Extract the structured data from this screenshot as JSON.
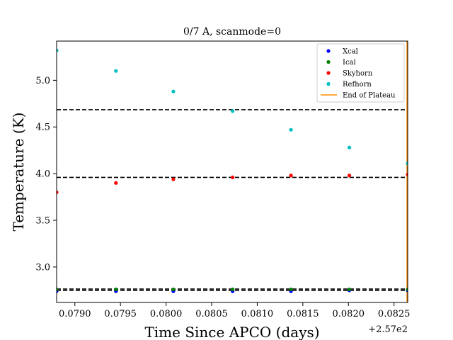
{
  "chart_data": {
    "type": "scatter",
    "title": "0/7 A, scanmode=0",
    "xlabel": "Time Since APCO (days)",
    "ylabel": "Temperature (K)",
    "x_offset_label": "+2.57e2",
    "xlim": [
      0.0788,
      0.08265
    ],
    "ylim": [
      2.62,
      5.42
    ],
    "xticks": [
      0.079,
      0.0795,
      0.08,
      0.0805,
      0.081,
      0.0815,
      0.082,
      0.0825
    ],
    "xtick_labels": [
      "0.0790",
      "0.0795",
      "0.0800",
      "0.0805",
      "0.0810",
      "0.0815",
      "0.0820",
      "0.0825"
    ],
    "yticks": [
      3.0,
      3.5,
      4.0,
      4.5,
      5.0
    ],
    "ytick_labels": [
      "3.0",
      "3.5",
      "4.0",
      "4.5",
      "5.0"
    ],
    "grid": false,
    "legend_position": "top-right",
    "series": [
      {
        "name": "Xcal",
        "color": "#0000ff",
        "x": [
          0.0788,
          0.07945,
          0.08008,
          0.08073,
          0.08137,
          0.08201,
          0.08265
        ],
        "y": [
          2.74,
          2.74,
          2.74,
          2.74,
          2.74,
          2.75,
          2.75
        ]
      },
      {
        "name": "Ical",
        "color": "#008000",
        "x": [
          0.0788,
          0.07945,
          0.08008,
          0.08073,
          0.08137,
          0.08201,
          0.08265
        ],
        "y": [
          2.76,
          2.76,
          2.76,
          2.76,
          2.76,
          2.76,
          2.76
        ]
      },
      {
        "name": "Skyhorn",
        "color": "#ff0000",
        "x": [
          0.0788,
          0.07945,
          0.08008,
          0.08073,
          0.08137,
          0.08201,
          0.08265
        ],
        "y": [
          3.8,
          3.9,
          3.94,
          3.96,
          3.98,
          3.98,
          3.99
        ]
      },
      {
        "name": "Refhorn",
        "color": "#00bfbf",
        "x": [
          0.0788,
          0.07945,
          0.08008,
          0.08073,
          0.08137,
          0.08201,
          0.08265
        ],
        "y": [
          5.32,
          5.1,
          4.88,
          4.67,
          4.47,
          4.28,
          4.11
        ]
      }
    ],
    "hlines": [
      {
        "y": 4.685,
        "style": "dashed",
        "color": "#000000"
      },
      {
        "y": 3.96,
        "style": "dashed",
        "color": "#000000"
      },
      {
        "y": 2.764,
        "style": "dashed",
        "color": "#000000"
      },
      {
        "y": 2.748,
        "style": "dashed",
        "color": "#000000"
      }
    ],
    "vline": {
      "name": "End of Plateau",
      "x": 0.08265,
      "color": "#ff8c00"
    }
  }
}
